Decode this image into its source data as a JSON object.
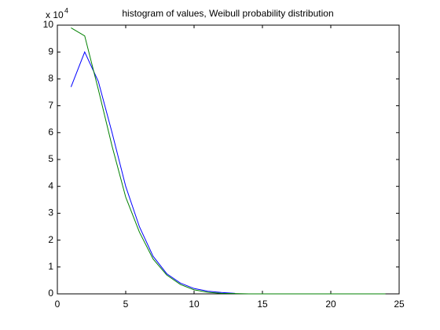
{
  "chart_data": {
    "type": "line",
    "title": "histogram of values, Weibull probability distribution",
    "y_multiplier": "x 10",
    "y_exponent": "4",
    "series": [
      {
        "color": "#0000ff",
        "x": [
          1,
          2,
          3,
          4,
          5,
          6,
          7,
          8,
          9,
          10,
          11,
          12,
          13
        ],
        "values": [
          7.7,
          9.0,
          7.9,
          6.0,
          4.0,
          2.5,
          1.4,
          0.75,
          0.4,
          0.2,
          0.1,
          0.05,
          0.02
        ]
      },
      {
        "color": "#008000",
        "x": [
          1,
          2,
          3,
          4,
          5,
          6,
          7,
          8,
          9,
          10,
          11,
          12,
          13,
          14,
          15,
          16,
          17,
          18,
          19,
          20,
          21,
          22,
          23,
          24
        ],
        "values": [
          9.9,
          9.6,
          7.6,
          5.5,
          3.6,
          2.3,
          1.3,
          0.7,
          0.35,
          0.15,
          0.06,
          0.02,
          0.01,
          0,
          0,
          0,
          0,
          0,
          0,
          0,
          0,
          0,
          0,
          0
        ]
      }
    ],
    "xlim": [
      0,
      25
    ],
    "xticks": [
      0,
      5,
      10,
      15,
      20,
      25
    ],
    "ylim": [
      0,
      10
    ],
    "yticks": [
      0,
      1,
      2,
      3,
      4,
      5,
      6,
      7,
      8,
      9,
      10
    ],
    "grid": false
  }
}
